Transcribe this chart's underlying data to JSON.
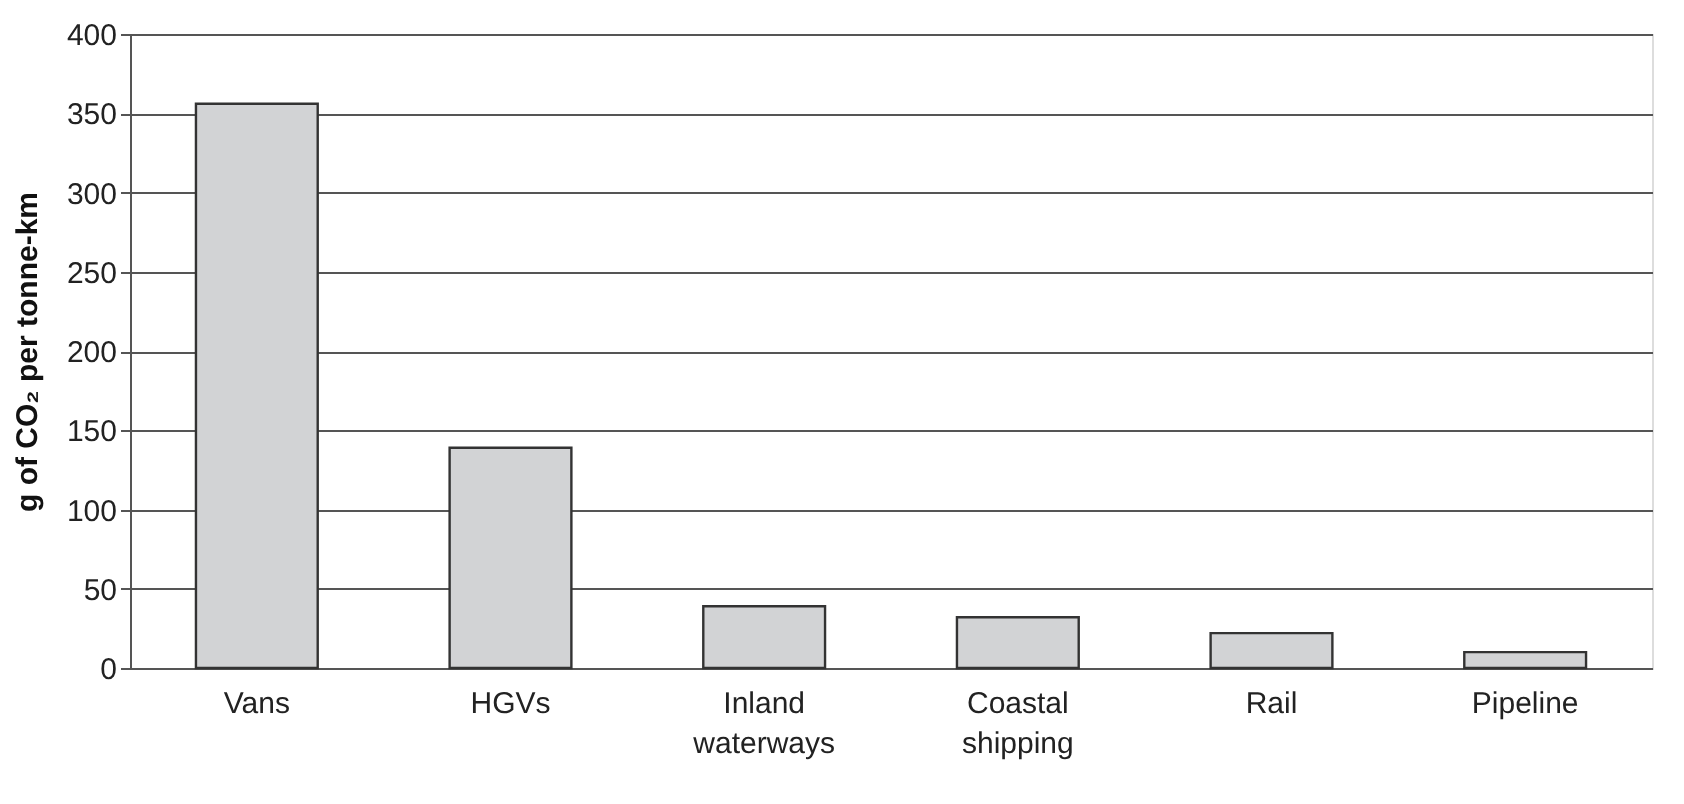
{
  "chart_data": {
    "type": "bar",
    "ylabel": "g of CO₂ per tonne-km",
    "categories": [
      "Vans",
      "HGVs",
      "Inland waterways",
      "Coastal shipping",
      "Rail",
      "Pipeline"
    ],
    "values": [
      356,
      139,
      39,
      32,
      22,
      10
    ],
    "color": "#d2d3d5",
    "ylim": [
      0,
      400
    ],
    "yticks": [
      0,
      50,
      100,
      150,
      200,
      250,
      300,
      350,
      400
    ],
    "grid": "y"
  }
}
